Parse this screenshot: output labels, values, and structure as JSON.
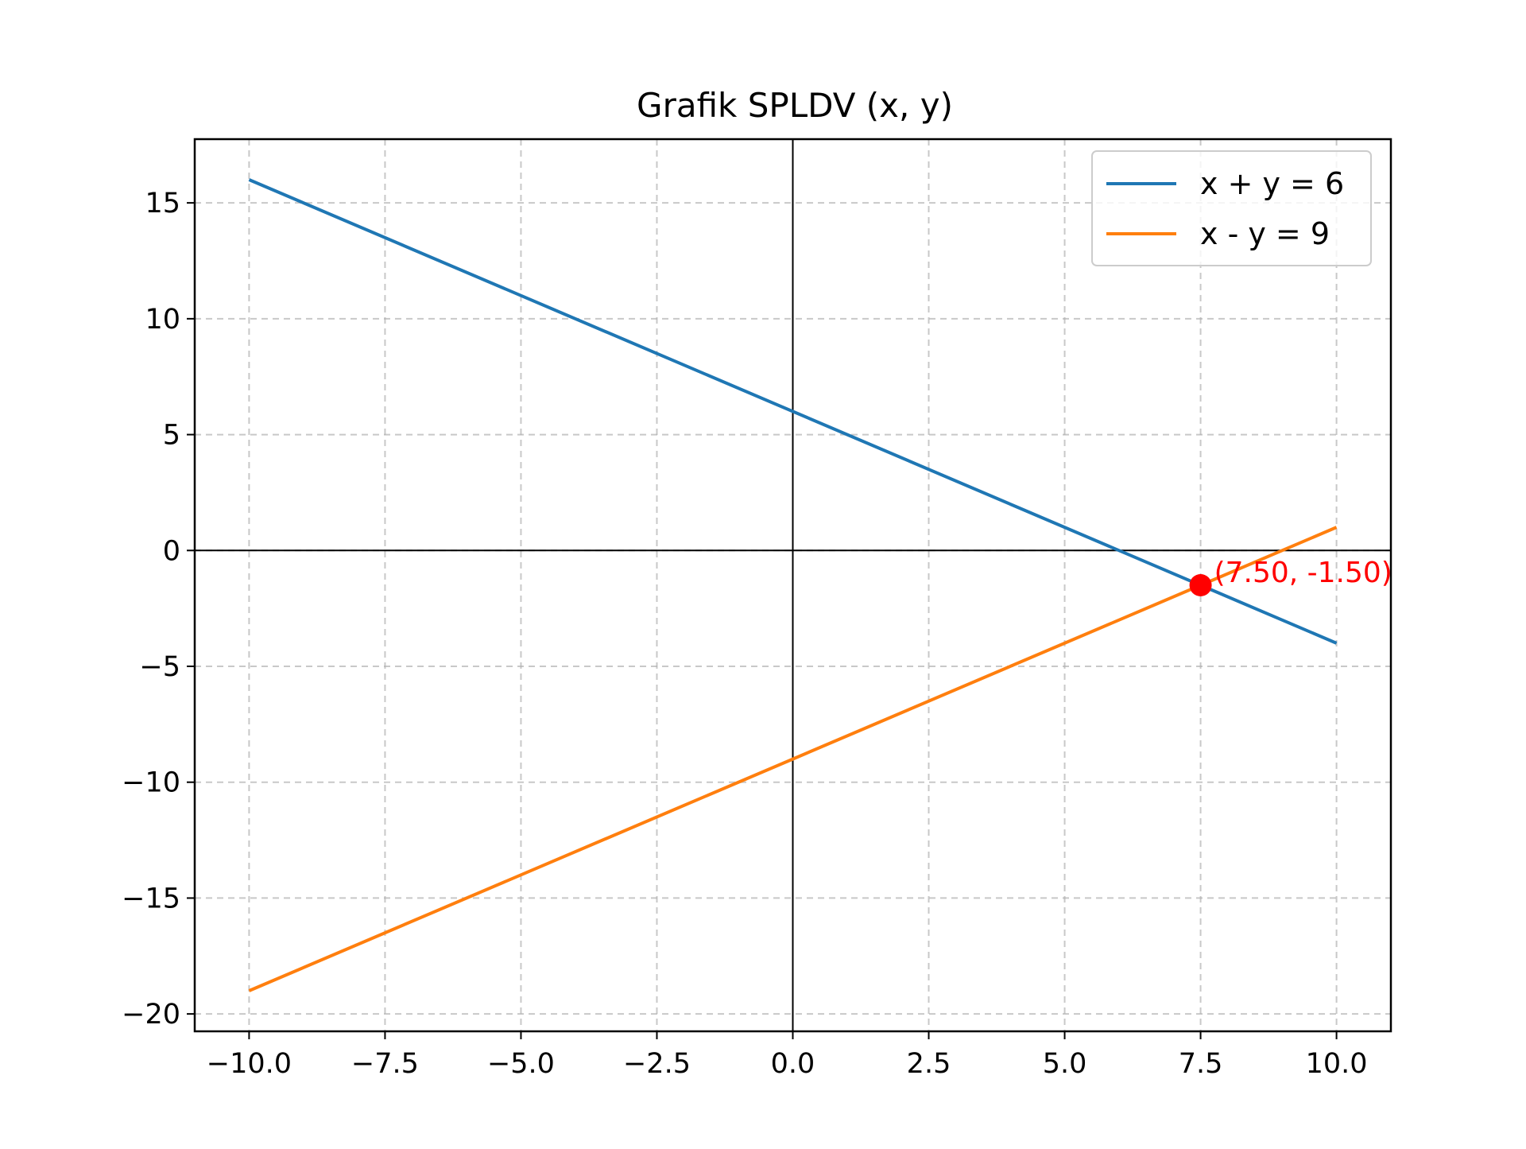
{
  "chart_data": {
    "type": "line",
    "title": "Grafik SPLDV (x, y)",
    "xlabel": "",
    "ylabel": "",
    "xlim": [
      -11,
      11
    ],
    "ylim": [
      -20.75,
      17.75
    ],
    "x_ticks": [
      -10.0,
      -7.5,
      -5.0,
      -2.5,
      0.0,
      2.5,
      5.0,
      7.5,
      10.0
    ],
    "x_tick_labels": [
      "−10.0",
      "−7.5",
      "−5.0",
      "−2.5",
      "0.0",
      "2.5",
      "5.0",
      "7.5",
      "10.0"
    ],
    "y_ticks": [
      -20,
      -15,
      -10,
      -5,
      0,
      5,
      10,
      15
    ],
    "y_tick_labels": [
      "−20",
      "−15",
      "−10",
      "−5",
      "0",
      "5",
      "10",
      "15"
    ],
    "grid": true,
    "grid_style": "dashed",
    "axes_lines_at_zero": true,
    "legend_position": "upper right",
    "series": [
      {
        "name": "x + y = 6",
        "color": "#1f77b4",
        "points": [
          [
            -10,
            16
          ],
          [
            10,
            -4
          ]
        ]
      },
      {
        "name": "x - y = 9",
        "color": "#ff7f0e",
        "points": [
          [
            -10,
            -19
          ],
          [
            10,
            1
          ]
        ]
      }
    ],
    "annotations": [
      {
        "type": "point",
        "x": 7.5,
        "y": -1.5,
        "label": "(7.50, -1.50)",
        "color": "#ff0000"
      }
    ]
  }
}
